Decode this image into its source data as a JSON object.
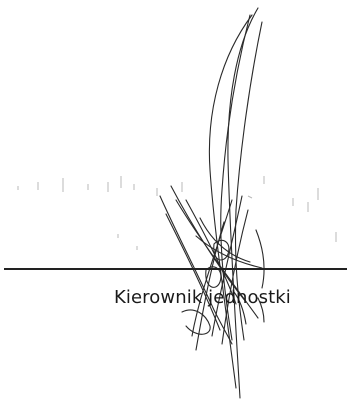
{
  "document": {
    "signature_caption": "Kierownik jednostki",
    "ink_color": "#2a2a2a",
    "line_color": "#222222"
  }
}
